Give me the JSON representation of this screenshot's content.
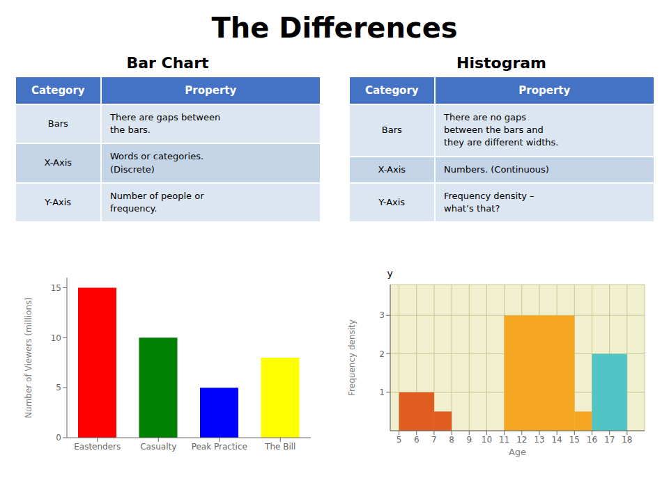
{
  "title": "The Differences",
  "chart_data": [
    {
      "type": "bar",
      "title": "Bar Chart",
      "table": {
        "headers": [
          "Category",
          "Property"
        ],
        "rows": [
          [
            "Bars",
            "There are gaps between\nthe bars."
          ],
          [
            "X-Axis",
            "Words or categories.\n(Discrete)"
          ],
          [
            "Y-Axis",
            "Number of people or\nfrequency."
          ]
        ]
      },
      "categories": [
        "Eastenders",
        "Casualty",
        "Peak Practice",
        "The Bill"
      ],
      "values": [
        15,
        10,
        5,
        8
      ],
      "colors": [
        "#ff0000",
        "#008000",
        "#0000ff",
        "#ffff00"
      ],
      "ylabel": "Number of Viewers (millions)",
      "ylim": [
        0,
        16
      ],
      "yticks": [
        0,
        5,
        10,
        15
      ],
      "grid": false
    },
    {
      "type": "histogram",
      "title": "Histogram",
      "table": {
        "headers": [
          "Category",
          "Property"
        ],
        "rows": [
          [
            "Bars",
            "There are no gaps\nbetween the bars and\nthey are different widths."
          ],
          [
            "X-Axis",
            "Numbers. (Continuous)"
          ],
          [
            "Y-Axis",
            "Frequency density –\nwhat’s that?"
          ]
        ]
      },
      "bins": [
        5,
        7,
        8,
        11,
        15,
        16,
        18
      ],
      "values": [
        1.0,
        0.5,
        null,
        3.0,
        0.5,
        2.0
      ],
      "colors": [
        "#e05c20",
        "#e05c20",
        null,
        "#f5a623",
        "#f5a623",
        "#4fc5c5"
      ],
      "xlabel": "Age",
      "ylabel": "Frequency density",
      "annotations": [
        "y"
      ],
      "xlim": [
        4.5,
        19
      ],
      "ylim": [
        0,
        3.8
      ],
      "xticks": [
        5,
        6,
        7,
        8,
        9,
        10,
        11,
        12,
        13,
        14,
        15,
        16,
        17,
        18
      ],
      "yticks": [
        1,
        2,
        3
      ],
      "grid": true
    }
  ]
}
